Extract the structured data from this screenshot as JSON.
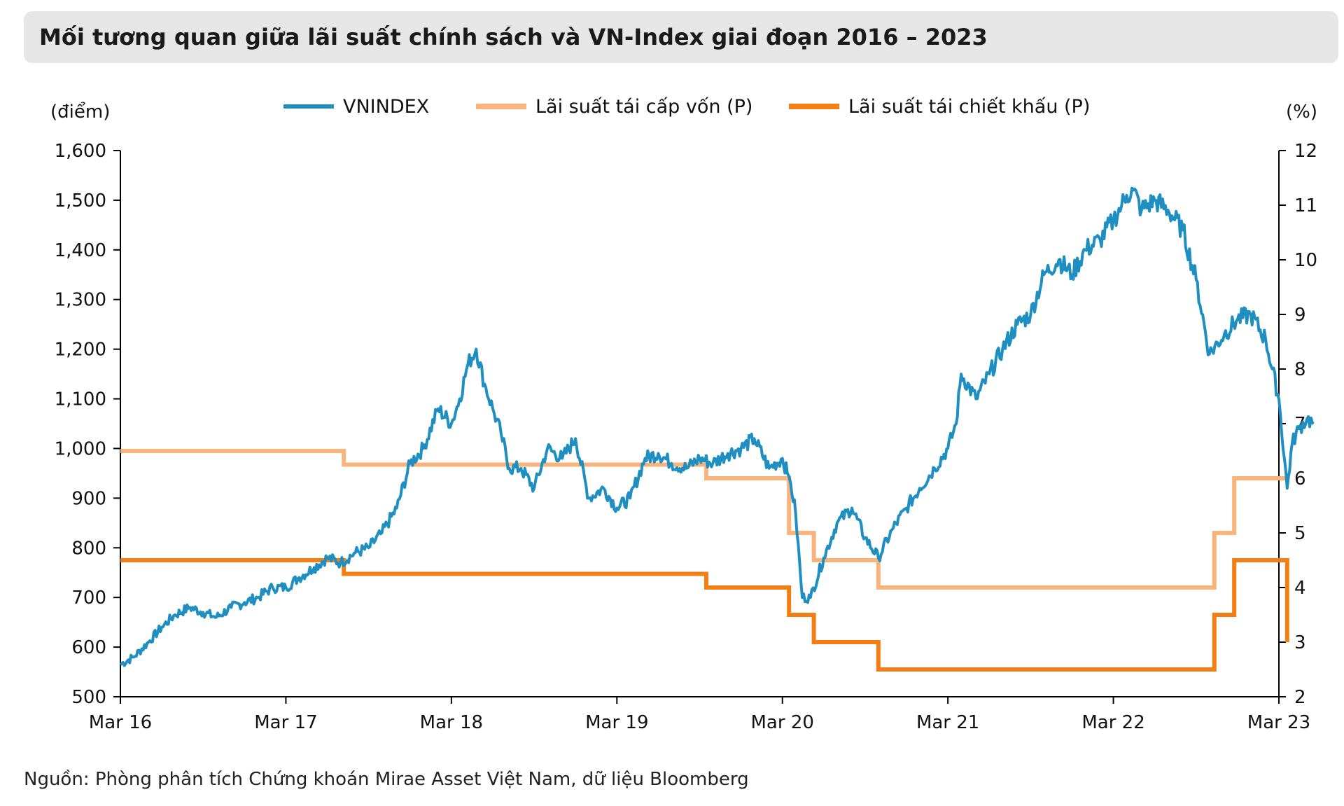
{
  "title": "Mối tương quan giữa lãi suất chính sách và VN-Index giai đoạn 2016 – 2023",
  "source": "Nguồn: Phòng phân tích Chứng khoán Mirae Asset Việt Nam, dữ liệu Bloomberg",
  "chart_data": {
    "type": "line",
    "left_axis_unit": "(điểm)",
    "right_axis_unit": "(%)",
    "y_left": {
      "min": 500,
      "max": 1600,
      "ticks": [
        500,
        600,
        700,
        800,
        900,
        1000,
        1100,
        1200,
        1300,
        1400,
        1500,
        1600
      ],
      "tick_labels": [
        "500",
        "600",
        "700",
        "800",
        "900",
        "1,000",
        "1,100",
        "1,200",
        "1,300",
        "1,400",
        "1,500",
        "1,600"
      ]
    },
    "y_right": {
      "min": 2,
      "max": 12,
      "ticks": [
        2,
        3,
        4,
        5,
        6,
        7,
        8,
        9,
        10,
        11,
        12
      ],
      "tick_labels": [
        "2",
        "3",
        "4",
        "5",
        "6",
        "7",
        "8",
        "9",
        "10",
        "11",
        "12"
      ]
    },
    "x_axis": {
      "min": 2016.0,
      "max": 2023.0,
      "ticks": [
        2016,
        2017,
        2018,
        2019,
        2020,
        2021,
        2022,
        2023
      ],
      "tick_labels": [
        "Mar 16",
        "Mar 17",
        "Mar 18",
        "Mar 19",
        "Mar 20",
        "Mar 21",
        "Mar 22",
        "Mar 23"
      ]
    },
    "legend": {
      "position": "top"
    },
    "colors": {
      "vnindex": "#1f8ec1",
      "refinancing": "#f8b47c",
      "discount": "#f47e14"
    },
    "series": [
      {
        "name": "VNINDEX",
        "axis": "left",
        "color": "#1f8ec1",
        "x": [
          2016.0,
          2016.08,
          2016.17,
          2016.25,
          2016.33,
          2016.42,
          2016.5,
          2016.58,
          2016.67,
          2016.75,
          2016.83,
          2016.92,
          2017.0,
          2017.08,
          2017.17,
          2017.25,
          2017.33,
          2017.42,
          2017.5,
          2017.58,
          2017.67,
          2017.75,
          2017.83,
          2017.92,
          2018.0,
          2018.05,
          2018.1,
          2018.15,
          2018.2,
          2018.25,
          2018.3,
          2018.35,
          2018.42,
          2018.5,
          2018.58,
          2018.67,
          2018.75,
          2018.83,
          2018.92,
          2019.0,
          2019.08,
          2019.17,
          2019.25,
          2019.33,
          2019.42,
          2019.5,
          2019.58,
          2019.67,
          2019.75,
          2019.83,
          2019.92,
          2020.0,
          2020.03,
          2020.05,
          2020.08,
          2020.12,
          2020.17,
          2020.25,
          2020.33,
          2020.42,
          2020.5,
          2020.58,
          2020.67,
          2020.75,
          2020.83,
          2020.92,
          2021.0,
          2021.05,
          2021.08,
          2021.17,
          2021.25,
          2021.33,
          2021.42,
          2021.5,
          2021.58,
          2021.67,
          2021.75,
          2021.83,
          2021.92,
          2022.0,
          2022.05,
          2022.08,
          2022.12,
          2022.17,
          2022.25,
          2022.33,
          2022.42,
          2022.5,
          2022.58,
          2022.67,
          2022.75,
          2022.83,
          2022.92,
          2023.0
        ],
        "y": [
          565,
          580,
          610,
          640,
          665,
          680,
          670,
          660,
          680,
          690,
          700,
          720,
          720,
          740,
          760,
          780,
          770,
          790,
          800,
          830,
          880,
          970,
          1000,
          1080,
          1050,
          1100,
          1170,
          1200,
          1130,
          1080,
          1030,
          960,
          960,
          920,
          1000,
          980,
          1020,
          900,
          920,
          880,
          900,
          980,
          990,
          970,
          960,
          980,
          970,
          990,
          1000,
          1020,
          960,
          980,
          950,
          930,
          870,
          700,
          700,
          780,
          850,
          880,
          820,
          780,
          840,
          880,
          920,
          960,
          1000,
          1050,
          1150,
          1100,
          1150,
          1200,
          1250,
          1270,
          1350,
          1380,
          1350,
          1400,
          1420,
          1460,
          1490,
          1510,
          1520,
          1480,
          1500,
          1480,
          1440,
          1340,
          1190,
          1230,
          1260,
          1270,
          1220,
          1100
        ],
        "extra_x": [
          2023.0,
          2023.05,
          2023.08,
          2023.12,
          2023.17,
          2023.21
        ],
        "extra_y": [
          1010,
          920,
          1010,
          1040,
          1060,
          1050
        ]
      },
      {
        "name": "Lãi suất tái cấp vốn (P)",
        "axis": "right",
        "color": "#f8b47c",
        "steps": [
          [
            2016.0,
            6.5
          ],
          [
            2017.35,
            6.25
          ],
          [
            2019.54,
            6.0
          ],
          [
            2020.04,
            5.0
          ],
          [
            2020.19,
            4.5
          ],
          [
            2020.58,
            4.0
          ],
          [
            2022.61,
            5.0
          ],
          [
            2022.73,
            6.0
          ],
          [
            2023.05,
            6.0
          ]
        ]
      },
      {
        "name": "Lãi suất tái chiết khấu (P)",
        "axis": "right",
        "color": "#f47e14",
        "steps": [
          [
            2016.0,
            4.5
          ],
          [
            2017.35,
            4.25
          ],
          [
            2019.54,
            4.0
          ],
          [
            2020.04,
            3.5
          ],
          [
            2020.19,
            3.0
          ],
          [
            2020.58,
            2.5
          ],
          [
            2022.61,
            3.5
          ],
          [
            2022.73,
            4.5
          ],
          [
            2023.05,
            3.0
          ]
        ]
      }
    ]
  }
}
